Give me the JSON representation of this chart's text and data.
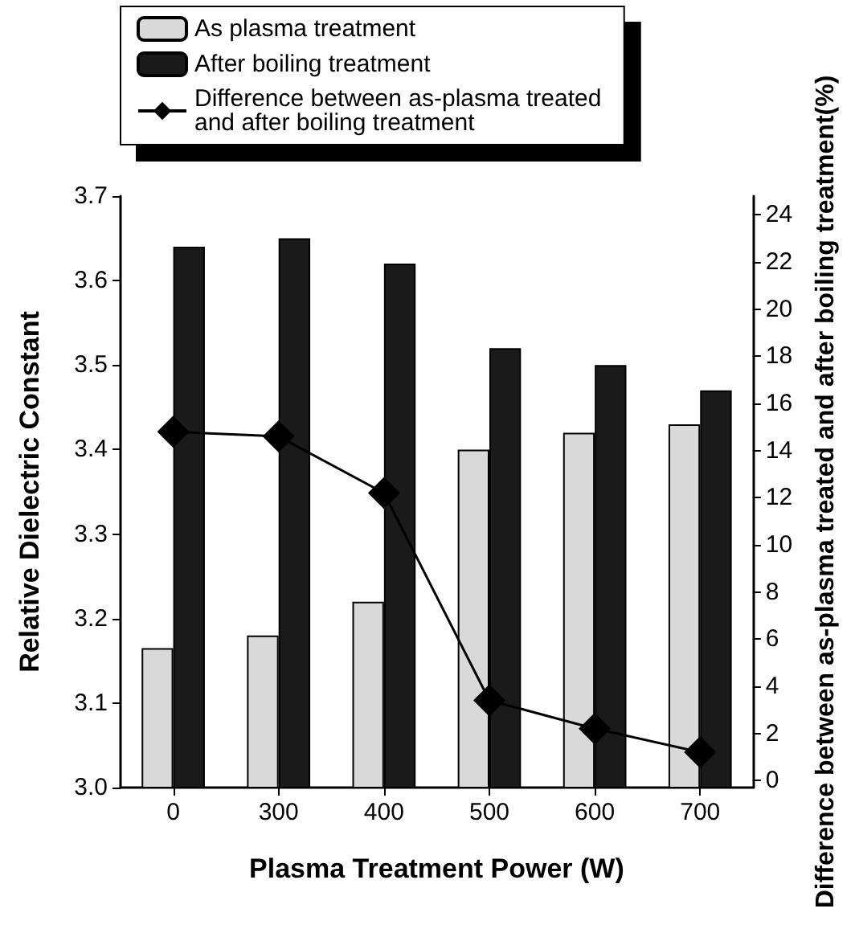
{
  "chart_data": {
    "type": "bar",
    "xlabel": "Plasma Treatment Power (W)",
    "ylabel": "Relative Dielectric Constant",
    "y2label": "Difference between as-plasma treated and after boiling treatment(%)",
    "categories": [
      "0",
      "300",
      "400",
      "500",
      "600",
      "700"
    ],
    "series": [
      {
        "name": "As plasma treatment",
        "color": "#d9d9d9",
        "values": [
          3.165,
          3.18,
          3.22,
          3.4,
          3.42,
          3.43
        ]
      },
      {
        "name": "After boiling treatment",
        "color": "#1a1a1a",
        "values": [
          3.64,
          3.65,
          3.62,
          3.52,
          3.5,
          3.47
        ]
      },
      {
        "name": "Difference between as-plasma treated and after boiling treatment",
        "type": "line",
        "axis": "y2",
        "marker": "diamond",
        "color": "#000000",
        "values": [
          14.8,
          14.6,
          12.2,
          3.4,
          2.2,
          1.2
        ]
      }
    ],
    "ylim": [
      3.0,
      3.7
    ],
    "yticks": [
      {
        "value": 3.0,
        "label": "3.0"
      },
      3.1,
      3.2,
      3.3,
      3.4,
      3.5,
      3.6,
      3.7
    ],
    "y2lim": [
      -0.3,
      24.8
    ],
    "y2ticks": [
      0,
      2,
      4,
      6,
      8,
      10,
      12,
      14,
      16,
      18,
      20,
      22,
      24
    ],
    "legend": "top",
    "grid": false
  }
}
